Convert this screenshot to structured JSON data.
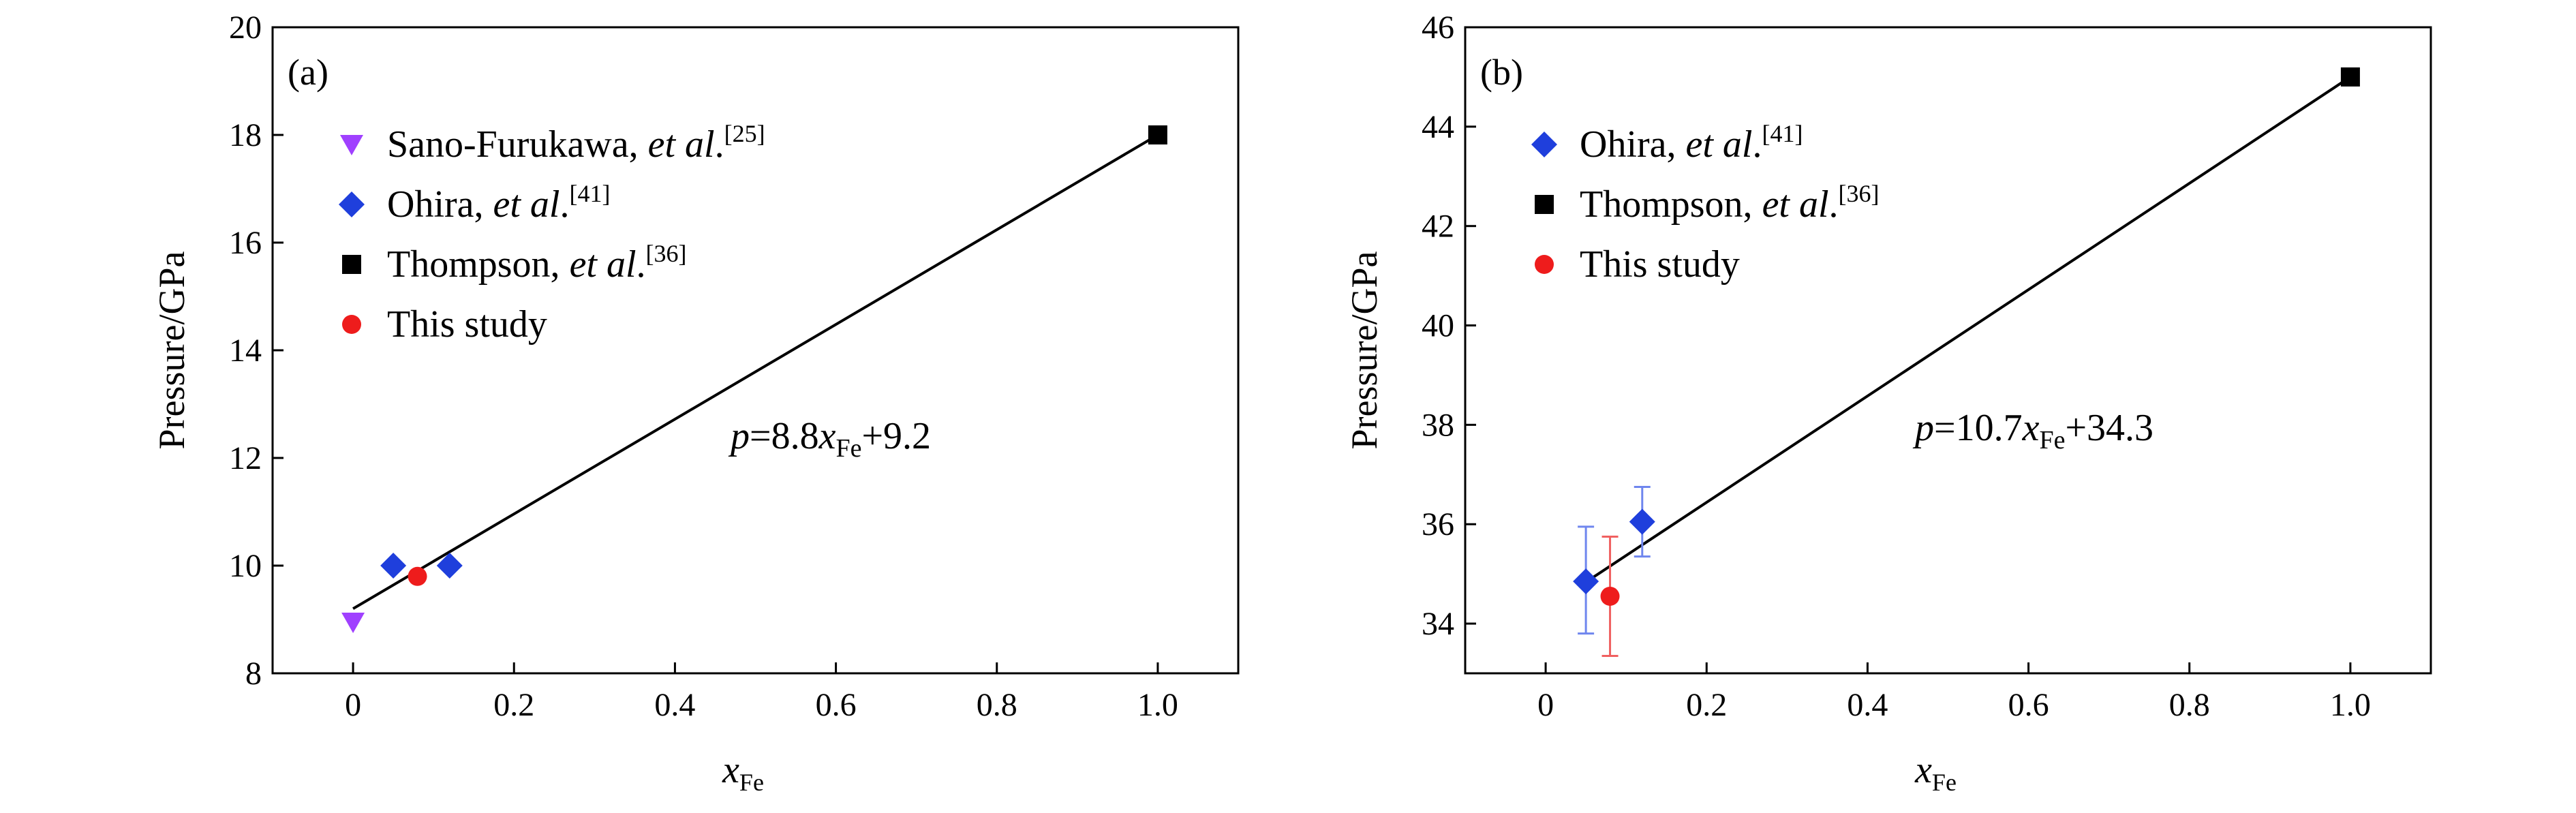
{
  "chart_data": [
    {
      "type": "scatter",
      "panel_label": "(a)",
      "xlabel": {
        "main": "x",
        "sub": "Fe"
      },
      "ylabel": "Pressure/GPa",
      "xlim": [
        -0.1,
        1.1
      ],
      "ylim": [
        8,
        20
      ],
      "xticks": [
        0,
        0.2,
        0.4,
        0.6,
        0.8,
        1.0
      ],
      "xtick_labels": [
        "0",
        "0.2",
        "0.4",
        "0.6",
        "0.8",
        "1.0"
      ],
      "yticks": [
        8,
        10,
        12,
        14,
        16,
        18,
        20
      ],
      "ytick_labels": [
        "8",
        "10",
        "12",
        "14",
        "16",
        "18",
        "20"
      ],
      "legend_position": "upper-left",
      "series": [
        {
          "name": "Sano-Furukawa, ",
          "name_em": "et al",
          "name_tail": ".",
          "ref": "[25]",
          "marker": "triangle-down",
          "color": "#a040ff",
          "x": [
            0
          ],
          "y": [
            8.95
          ]
        },
        {
          "name": "Ohira, ",
          "name_em": "et al",
          "name_tail": ".",
          "ref": "[41]",
          "marker": "diamond",
          "color": "#1f3fdc",
          "x": [
            0.05,
            0.12
          ],
          "y": [
            10.0,
            10.0
          ]
        },
        {
          "name": "Thompson, ",
          "name_em": "et al",
          "name_tail": ".",
          "ref": "[36]",
          "marker": "square",
          "color": "#000000",
          "x": [
            1.0
          ],
          "y": [
            18.0
          ]
        },
        {
          "name": "This study",
          "name_em": "",
          "name_tail": "",
          "ref": "",
          "marker": "circle",
          "color": "#ee1c1c",
          "x": [
            0.08
          ],
          "y": [
            9.8
          ]
        }
      ],
      "fit_line": {
        "slope": 8.8,
        "intercept": 9.2,
        "x_range": [
          0,
          1.0
        ]
      },
      "equation": {
        "p": "p",
        "eq_a": "=8.8",
        "x": "x",
        "sub": "Fe",
        "eq_b": "+9.2"
      }
    },
    {
      "type": "scatter",
      "panel_label": "(b)",
      "xlabel": {
        "main": "x",
        "sub": "Fe"
      },
      "ylabel": "Pressure/GPa",
      "xlim": [
        -0.1,
        1.1
      ],
      "ylim": [
        33,
        46
      ],
      "xticks": [
        0,
        0.2,
        0.4,
        0.6,
        0.8,
        1.0
      ],
      "xtick_labels": [
        "0",
        "0.2",
        "0.4",
        "0.6",
        "0.8",
        "1.0"
      ],
      "yticks": [
        34,
        36,
        38,
        40,
        42,
        44,
        46
      ],
      "ytick_labels": [
        "34",
        "36",
        "38",
        "40",
        "42",
        "44",
        "46"
      ],
      "legend_position": "upper-left",
      "series": [
        {
          "name": "Ohira, ",
          "name_em": "et al",
          "name_tail": ".",
          "ref": "[41]",
          "marker": "diamond",
          "color": "#1f3fdc",
          "errcolor": "#6f86ee",
          "x": [
            0.05,
            0.12
          ],
          "y": [
            34.85,
            36.05
          ],
          "err_low": [
            33.8,
            35.35
          ],
          "err_high": [
            35.95,
            36.75
          ]
        },
        {
          "name": "Thompson, ",
          "name_em": "et al",
          "name_tail": ".",
          "ref": "[36]",
          "marker": "square",
          "color": "#000000",
          "x": [
            1.0
          ],
          "y": [
            45.0
          ]
        },
        {
          "name": "This study",
          "name_em": "",
          "name_tail": "",
          "ref": "",
          "marker": "circle",
          "color": "#ee1c1c",
          "errcolor": "#f06060",
          "x": [
            0.08
          ],
          "y": [
            34.55
          ],
          "err_low": [
            33.35
          ],
          "err_high": [
            35.75
          ]
        }
      ],
      "fit_line": {
        "slope": 10.7,
        "intercept": 34.3,
        "x_range": [
          0.05,
          1.0
        ]
      },
      "equation": {
        "p": "p",
        "eq_a": "=10.7",
        "x": "x",
        "sub": "Fe",
        "eq_b": "+34.3"
      }
    }
  ]
}
